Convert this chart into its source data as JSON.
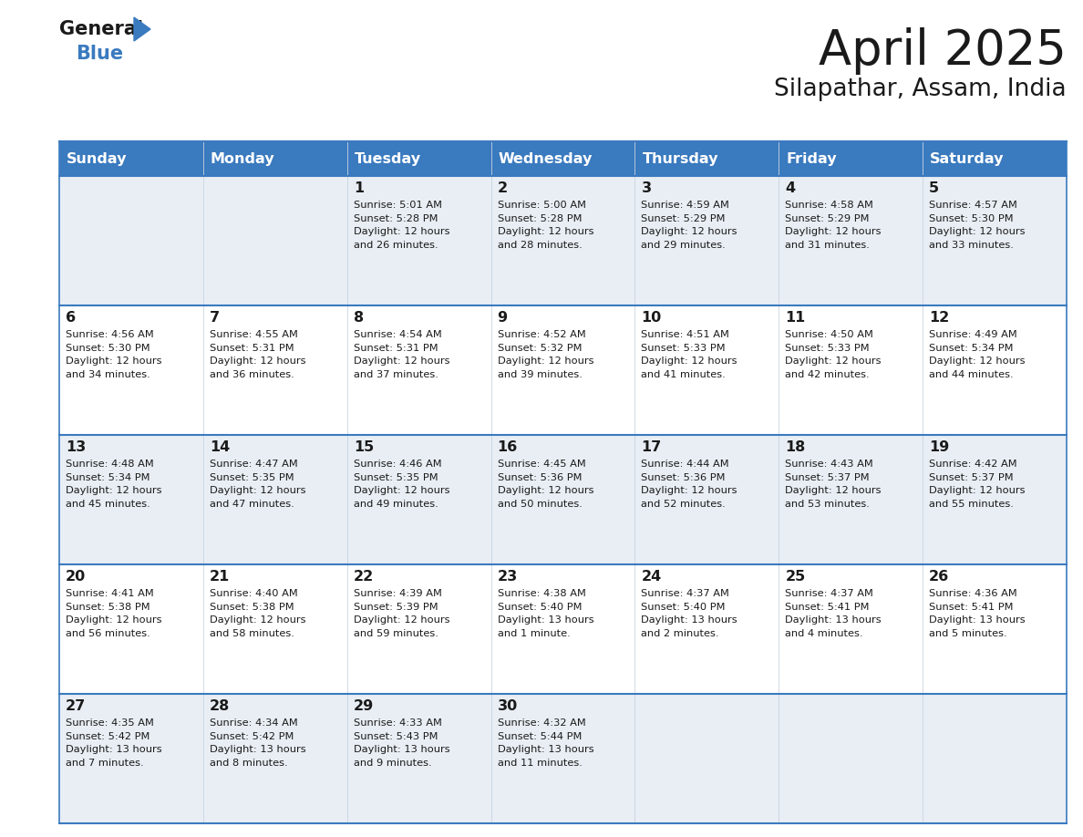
{
  "title": "April 2025",
  "subtitle": "Silapathar, Assam, India",
  "header_bg": "#3a7abf",
  "header_text": "#ffffff",
  "row_bg_light": "#e8eef4",
  "row_bg_white": "#ffffff",
  "separator_color": "#3a7abf",
  "text_color": "#1a1a1a",
  "day_names": [
    "Sunday",
    "Monday",
    "Tuesday",
    "Wednesday",
    "Thursday",
    "Friday",
    "Saturday"
  ],
  "days": [
    {
      "day": 1,
      "col": 2,
      "row": 0,
      "sunrise": "5:01 AM",
      "sunset": "5:28 PM",
      "daylight_h": "12 hours",
      "daylight_m": "26 minutes"
    },
    {
      "day": 2,
      "col": 3,
      "row": 0,
      "sunrise": "5:00 AM",
      "sunset": "5:28 PM",
      "daylight_h": "12 hours",
      "daylight_m": "28 minutes"
    },
    {
      "day": 3,
      "col": 4,
      "row": 0,
      "sunrise": "4:59 AM",
      "sunset": "5:29 PM",
      "daylight_h": "12 hours",
      "daylight_m": "29 minutes"
    },
    {
      "day": 4,
      "col": 5,
      "row": 0,
      "sunrise": "4:58 AM",
      "sunset": "5:29 PM",
      "daylight_h": "12 hours",
      "daylight_m": "31 minutes"
    },
    {
      "day": 5,
      "col": 6,
      "row": 0,
      "sunrise": "4:57 AM",
      "sunset": "5:30 PM",
      "daylight_h": "12 hours",
      "daylight_m": "33 minutes"
    },
    {
      "day": 6,
      "col": 0,
      "row": 1,
      "sunrise": "4:56 AM",
      "sunset": "5:30 PM",
      "daylight_h": "12 hours",
      "daylight_m": "34 minutes"
    },
    {
      "day": 7,
      "col": 1,
      "row": 1,
      "sunrise": "4:55 AM",
      "sunset": "5:31 PM",
      "daylight_h": "12 hours",
      "daylight_m": "36 minutes"
    },
    {
      "day": 8,
      "col": 2,
      "row": 1,
      "sunrise": "4:54 AM",
      "sunset": "5:31 PM",
      "daylight_h": "12 hours",
      "daylight_m": "37 minutes"
    },
    {
      "day": 9,
      "col": 3,
      "row": 1,
      "sunrise": "4:52 AM",
      "sunset": "5:32 PM",
      "daylight_h": "12 hours",
      "daylight_m": "39 minutes"
    },
    {
      "day": 10,
      "col": 4,
      "row": 1,
      "sunrise": "4:51 AM",
      "sunset": "5:33 PM",
      "daylight_h": "12 hours",
      "daylight_m": "41 minutes"
    },
    {
      "day": 11,
      "col": 5,
      "row": 1,
      "sunrise": "4:50 AM",
      "sunset": "5:33 PM",
      "daylight_h": "12 hours",
      "daylight_m": "42 minutes"
    },
    {
      "day": 12,
      "col": 6,
      "row": 1,
      "sunrise": "4:49 AM",
      "sunset": "5:34 PM",
      "daylight_h": "12 hours",
      "daylight_m": "44 minutes"
    },
    {
      "day": 13,
      "col": 0,
      "row": 2,
      "sunrise": "4:48 AM",
      "sunset": "5:34 PM",
      "daylight_h": "12 hours",
      "daylight_m": "45 minutes"
    },
    {
      "day": 14,
      "col": 1,
      "row": 2,
      "sunrise": "4:47 AM",
      "sunset": "5:35 PM",
      "daylight_h": "12 hours",
      "daylight_m": "47 minutes"
    },
    {
      "day": 15,
      "col": 2,
      "row": 2,
      "sunrise": "4:46 AM",
      "sunset": "5:35 PM",
      "daylight_h": "12 hours",
      "daylight_m": "49 minutes"
    },
    {
      "day": 16,
      "col": 3,
      "row": 2,
      "sunrise": "4:45 AM",
      "sunset": "5:36 PM",
      "daylight_h": "12 hours",
      "daylight_m": "50 minutes"
    },
    {
      "day": 17,
      "col": 4,
      "row": 2,
      "sunrise": "4:44 AM",
      "sunset": "5:36 PM",
      "daylight_h": "12 hours",
      "daylight_m": "52 minutes"
    },
    {
      "day": 18,
      "col": 5,
      "row": 2,
      "sunrise": "4:43 AM",
      "sunset": "5:37 PM",
      "daylight_h": "12 hours",
      "daylight_m": "53 minutes"
    },
    {
      "day": 19,
      "col": 6,
      "row": 2,
      "sunrise": "4:42 AM",
      "sunset": "5:37 PM",
      "daylight_h": "12 hours",
      "daylight_m": "55 minutes"
    },
    {
      "day": 20,
      "col": 0,
      "row": 3,
      "sunrise": "4:41 AM",
      "sunset": "5:38 PM",
      "daylight_h": "12 hours",
      "daylight_m": "56 minutes"
    },
    {
      "day": 21,
      "col": 1,
      "row": 3,
      "sunrise": "4:40 AM",
      "sunset": "5:38 PM",
      "daylight_h": "12 hours",
      "daylight_m": "58 minutes"
    },
    {
      "day": 22,
      "col": 2,
      "row": 3,
      "sunrise": "4:39 AM",
      "sunset": "5:39 PM",
      "daylight_h": "12 hours",
      "daylight_m": "59 minutes"
    },
    {
      "day": 23,
      "col": 3,
      "row": 3,
      "sunrise": "4:38 AM",
      "sunset": "5:40 PM",
      "daylight_h": "13 hours",
      "daylight_m": "1 minute"
    },
    {
      "day": 24,
      "col": 4,
      "row": 3,
      "sunrise": "4:37 AM",
      "sunset": "5:40 PM",
      "daylight_h": "13 hours",
      "daylight_m": "2 minutes"
    },
    {
      "day": 25,
      "col": 5,
      "row": 3,
      "sunrise": "4:37 AM",
      "sunset": "5:41 PM",
      "daylight_h": "13 hours",
      "daylight_m": "4 minutes"
    },
    {
      "day": 26,
      "col": 6,
      "row": 3,
      "sunrise": "4:36 AM",
      "sunset": "5:41 PM",
      "daylight_h": "13 hours",
      "daylight_m": "5 minutes"
    },
    {
      "day": 27,
      "col": 0,
      "row": 4,
      "sunrise": "4:35 AM",
      "sunset": "5:42 PM",
      "daylight_h": "13 hours",
      "daylight_m": "7 minutes"
    },
    {
      "day": 28,
      "col": 1,
      "row": 4,
      "sunrise": "4:34 AM",
      "sunset": "5:42 PM",
      "daylight_h": "13 hours",
      "daylight_m": "8 minutes"
    },
    {
      "day": 29,
      "col": 2,
      "row": 4,
      "sunrise": "4:33 AM",
      "sunset": "5:43 PM",
      "daylight_h": "13 hours",
      "daylight_m": "9 minutes"
    },
    {
      "day": 30,
      "col": 3,
      "row": 4,
      "sunrise": "4:32 AM",
      "sunset": "5:44 PM",
      "daylight_h": "13 hours",
      "daylight_m": "11 minutes"
    }
  ]
}
